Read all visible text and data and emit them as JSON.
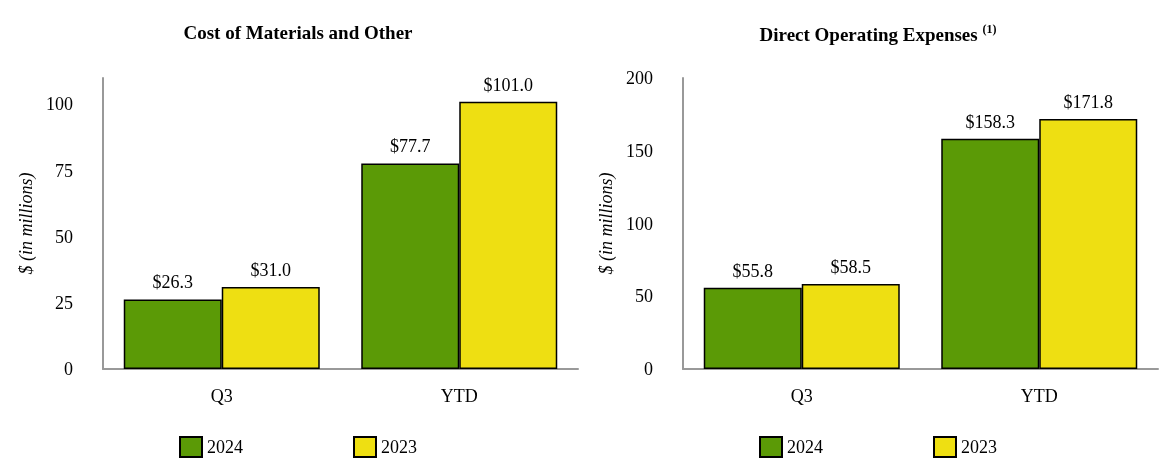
{
  "chart_data": [
    {
      "type": "bar",
      "title": "Cost of Materials and Other",
      "ylabel": "$ (in millions)",
      "categories": [
        "Q3",
        "YTD"
      ],
      "series": [
        {
          "name": "2024",
          "color": "#5b9a06",
          "values": [
            26.3,
            77.7
          ],
          "value_labels": [
            "$26.3",
            "$77.7"
          ]
        },
        {
          "name": "2023",
          "color": "#eedf12",
          "values": [
            31.0,
            101.0
          ],
          "value_labels": [
            "$31.0",
            "$101.0"
          ]
        }
      ],
      "ylim": [
        0,
        110
      ],
      "yticks": [
        0,
        25,
        50,
        75,
        100
      ],
      "grid": false,
      "legend": "bottom"
    },
    {
      "type": "bar",
      "title": "Direct Operating Expenses $^{(1)}$",
      "ylabel": "$ (in millions)",
      "categories": [
        "Q3",
        "YTD"
      ],
      "series": [
        {
          "name": "2024",
          "color": "#5b9a06",
          "values": [
            55.8,
            158.3
          ],
          "value_labels": [
            "$55.8",
            "$158.3"
          ]
        },
        {
          "name": "2023",
          "color": "#eedf12",
          "values": [
            58.5,
            171.8
          ],
          "value_labels": [
            "$58.5",
            "$171.8"
          ]
        }
      ],
      "ylim": [
        0,
        200
      ],
      "yticks": [
        0,
        50,
        100,
        150,
        200
      ],
      "grid": false,
      "legend": "bottom"
    }
  ]
}
